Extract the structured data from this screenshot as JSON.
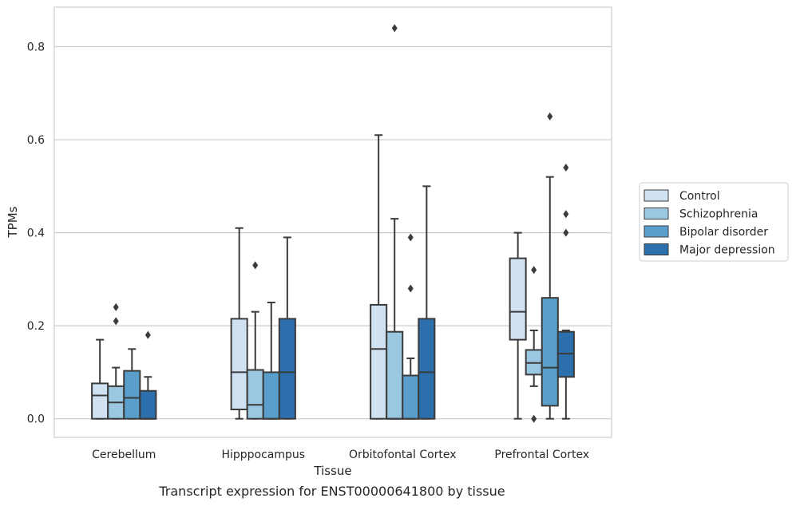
{
  "caption": "Transcript expression for ENST00000641800 by tissue",
  "chart_data": {
    "type": "box",
    "xlabel": "Tissue",
    "ylabel": "TPMs",
    "ylim": [
      -0.04,
      0.885
    ],
    "yticks": [
      0.0,
      0.2,
      0.4,
      0.6,
      0.8
    ],
    "ytick_labels": [
      "0.0",
      "0.2",
      "0.4",
      "0.6",
      "0.8"
    ],
    "grid": "horizontal",
    "legend_position": "right",
    "categories": [
      "Cerebellum",
      "Hipppocampus",
      "Orbitofontal Cortex",
      "Prefrontal Cortex"
    ],
    "series": [
      {
        "name": "Control",
        "color": "#d0e1f2",
        "boxes": [
          {
            "whislo": 0.0,
            "q1": 0.0,
            "med": 0.05,
            "q3": 0.076,
            "whishi": 0.17,
            "fliers": []
          },
          {
            "whislo": 0.0,
            "q1": 0.02,
            "med": 0.1,
            "q3": 0.215,
            "whishi": 0.41,
            "fliers": []
          },
          {
            "whislo": 0.0,
            "q1": 0.0,
            "med": 0.15,
            "q3": 0.245,
            "whishi": 0.61,
            "fliers": []
          },
          {
            "whislo": 0.0,
            "q1": 0.17,
            "med": 0.23,
            "q3": 0.345,
            "whishi": 0.4,
            "fliers": []
          }
        ]
      },
      {
        "name": "Schizophrenia",
        "color": "#9ac8e0",
        "boxes": [
          {
            "whislo": 0.0,
            "q1": 0.0,
            "med": 0.035,
            "q3": 0.07,
            "whishi": 0.11,
            "fliers": [
              0.21,
              0.24
            ]
          },
          {
            "whislo": 0.0,
            "q1": 0.0,
            "med": 0.03,
            "q3": 0.105,
            "whishi": 0.23,
            "fliers": [
              0.33
            ]
          },
          {
            "whislo": 0.0,
            "q1": 0.0,
            "med": 0.0,
            "q3": 0.187,
            "whishi": 0.43,
            "fliers": [
              0.84
            ]
          },
          {
            "whislo": 0.07,
            "q1": 0.095,
            "med": 0.12,
            "q3": 0.148,
            "whishi": 0.19,
            "fliers": [
              0.32,
              0.0
            ]
          }
        ]
      },
      {
        "name": "Bipolar disorder",
        "color": "#5a9ecc",
        "boxes": [
          {
            "whislo": 0.0,
            "q1": 0.0,
            "med": 0.045,
            "q3": 0.103,
            "whishi": 0.15,
            "fliers": []
          },
          {
            "whislo": 0.0,
            "q1": 0.0,
            "med": 0.0,
            "q3": 0.1,
            "whishi": 0.25,
            "fliers": []
          },
          {
            "whislo": 0.0,
            "q1": 0.0,
            "med": 0.0,
            "q3": 0.093,
            "whishi": 0.13,
            "fliers": [
              0.28,
              0.39
            ]
          },
          {
            "whislo": 0.0,
            "q1": 0.028,
            "med": 0.11,
            "q3": 0.26,
            "whishi": 0.52,
            "fliers": [
              0.65
            ]
          }
        ]
      },
      {
        "name": "Major depression",
        "color": "#2c6fad",
        "boxes": [
          {
            "whislo": 0.0,
            "q1": 0.0,
            "med": 0.0,
            "q3": 0.06,
            "whishi": 0.09,
            "fliers": [
              0.18
            ]
          },
          {
            "whislo": 0.0,
            "q1": 0.0,
            "med": 0.1,
            "q3": 0.215,
            "whishi": 0.39,
            "fliers": []
          },
          {
            "whislo": 0.0,
            "q1": 0.0,
            "med": 0.1,
            "q3": 0.215,
            "whishi": 0.5,
            "fliers": []
          },
          {
            "whislo": 0.0,
            "q1": 0.09,
            "med": 0.14,
            "q3": 0.187,
            "whishi": 0.19,
            "fliers": [
              0.4,
              0.44,
              0.54
            ]
          }
        ]
      }
    ]
  }
}
